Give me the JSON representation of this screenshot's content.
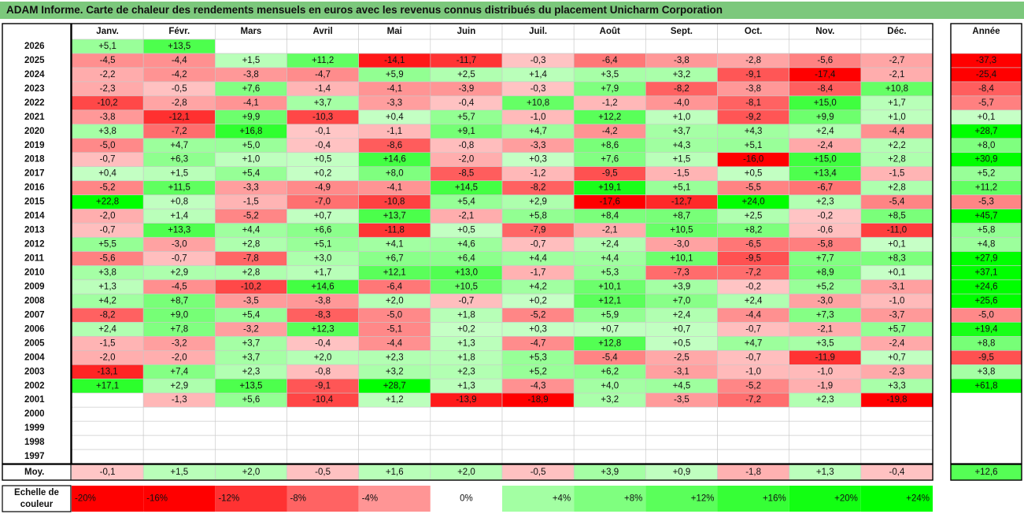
{
  "title": "ADAM Informe. Carte de chaleur des rendements mensuels en euros avec les revenus connus distribués du placement Unicharm Corporation",
  "chart_data": {
    "type": "heatmap",
    "months": [
      "Janv.",
      "Févr.",
      "Mars",
      "Avril",
      "Mai",
      "Juin",
      "Juil.",
      "Août",
      "Sept.",
      "Oct.",
      "Nov.",
      "Déc."
    ],
    "year_header": "Année",
    "rows": [
      {
        "year": "2026",
        "values": [
          5.1,
          13.5,
          null,
          null,
          null,
          null,
          null,
          null,
          null,
          null,
          null,
          null
        ],
        "annual": null
      },
      {
        "year": "2025",
        "values": [
          -4.5,
          -4.4,
          1.5,
          11.2,
          -14.1,
          -11.7,
          -0.3,
          -6.4,
          -3.8,
          -2.8,
          -5.6,
          -2.7
        ],
        "annual": -37.3
      },
      {
        "year": "2024",
        "values": [
          -2.2,
          -4.2,
          -3.8,
          -4.7,
          5.9,
          2.5,
          1.4,
          3.5,
          3.2,
          -9.1,
          -17.4,
          -2.1
        ],
        "annual": -25.4
      },
      {
        "year": "2023",
        "values": [
          -2.3,
          -0.5,
          7.6,
          -1.4,
          -4.1,
          -3.9,
          -0.3,
          7.9,
          -8.2,
          -3.8,
          -8.4,
          10.8
        ],
        "annual": -8.4
      },
      {
        "year": "2022",
        "values": [
          -10.2,
          -2.8,
          -4.1,
          3.7,
          -3.3,
          -0.4,
          10.8,
          -1.2,
          -4.0,
          -8.1,
          15.0,
          1.7
        ],
        "annual": -5.7
      },
      {
        "year": "2021",
        "values": [
          -3.8,
          -12.1,
          9.9,
          -10.3,
          0.4,
          5.7,
          -1.0,
          12.2,
          1.0,
          -9.2,
          9.9,
          1.0
        ],
        "annual": 0.1
      },
      {
        "year": "2020",
        "values": [
          3.8,
          -7.2,
          16.8,
          -0.1,
          -1.1,
          9.1,
          4.7,
          -4.2,
          3.7,
          4.3,
          2.4,
          -4.4
        ],
        "annual": 28.7
      },
      {
        "year": "2019",
        "values": [
          -5.0,
          4.7,
          5.0,
          -0.4,
          -8.6,
          -0.8,
          -3.3,
          8.6,
          4.3,
          5.1,
          -2.4,
          2.2
        ],
        "annual": 8.0
      },
      {
        "year": "2018",
        "values": [
          -0.7,
          6.3,
          1.0,
          0.5,
          14.6,
          -2.0,
          0.3,
          7.6,
          1.5,
          -16.0,
          15.0,
          2.8
        ],
        "annual": 30.9
      },
      {
        "year": "2017",
        "values": [
          0.4,
          1.5,
          5.4,
          0.2,
          8.0,
          -8.5,
          -1.2,
          -9.5,
          -1.5,
          0.5,
          13.4,
          -1.5
        ],
        "annual": 5.2
      },
      {
        "year": "2016",
        "values": [
          -5.2,
          11.5,
          -3.3,
          -4.9,
          -4.1,
          14.5,
          -8.2,
          19.1,
          5.1,
          -5.5,
          -6.7,
          2.8
        ],
        "annual": 11.2
      },
      {
        "year": "2015",
        "values": [
          22.8,
          0.8,
          -1.5,
          -7.0,
          -10.8,
          5.4,
          2.9,
          -17.6,
          -12.7,
          24.0,
          2.3,
          -5.4
        ],
        "annual": -5.3
      },
      {
        "year": "2014",
        "values": [
          -2.0,
          1.4,
          -5.2,
          0.7,
          13.7,
          -2.1,
          5.8,
          8.4,
          8.7,
          2.5,
          -0.2,
          8.5
        ],
        "annual": 45.7
      },
      {
        "year": "2013",
        "values": [
          -0.7,
          13.3,
          4.4,
          6.6,
          -11.8,
          0.5,
          -7.9,
          -2.1,
          10.5,
          8.2,
          -0.6,
          -11.0
        ],
        "annual": 5.8
      },
      {
        "year": "2012",
        "values": [
          5.5,
          -3.0,
          2.8,
          5.1,
          4.1,
          4.6,
          -0.7,
          2.4,
          -3.0,
          -6.5,
          -5.8,
          0.1
        ],
        "annual": 4.8
      },
      {
        "year": "2011",
        "values": [
          -5.6,
          -0.7,
          -7.8,
          3.0,
          6.7,
          6.4,
          4.4,
          4.4,
          10.1,
          -9.5,
          7.7,
          8.3
        ],
        "annual": 27.9
      },
      {
        "year": "2010",
        "values": [
          3.8,
          2.9,
          2.8,
          1.7,
          12.1,
          13.0,
          -1.7,
          5.3,
          -7.3,
          -7.2,
          8.9,
          0.1
        ],
        "annual": 37.1
      },
      {
        "year": "2009",
        "values": [
          1.3,
          -4.5,
          -10.2,
          14.6,
          -6.4,
          10.5,
          4.2,
          10.1,
          3.9,
          -0.2,
          5.2,
          -3.1
        ],
        "annual": 24.6
      },
      {
        "year": "2008",
        "values": [
          4.2,
          8.7,
          -3.5,
          -3.8,
          2.0,
          -0.7,
          0.2,
          12.1,
          7.0,
          2.4,
          -3.0,
          -1.0
        ],
        "annual": 25.6
      },
      {
        "year": "2007",
        "values": [
          -8.2,
          9.0,
          5.4,
          -8.3,
          -5.0,
          1.8,
          -5.2,
          5.9,
          2.4,
          -4.4,
          7.3,
          -3.7
        ],
        "annual": -5.0
      },
      {
        "year": "2006",
        "values": [
          2.4,
          7.8,
          -3.2,
          12.3,
          -5.1,
          0.2,
          0.3,
          0.7,
          0.7,
          -0.7,
          -2.1,
          5.7
        ],
        "annual": 19.4
      },
      {
        "year": "2005",
        "values": [
          -1.5,
          -3.2,
          3.7,
          -0.4,
          -4.4,
          1.3,
          -4.7,
          12.8,
          0.5,
          4.7,
          3.5,
          -2.4
        ],
        "annual": 8.8
      },
      {
        "year": "2004",
        "values": [
          -2.0,
          -2.0,
          3.7,
          2.0,
          2.3,
          1.8,
          5.3,
          -5.4,
          -2.5,
          -0.7,
          -11.9,
          0.7
        ],
        "annual": -9.5
      },
      {
        "year": "2003",
        "values": [
          -13.1,
          7.4,
          2.3,
          -0.8,
          3.2,
          2.3,
          5.2,
          6.2,
          -3.1,
          -1.0,
          -1.0,
          -2.3
        ],
        "annual": 3.8
      },
      {
        "year": "2002",
        "values": [
          17.1,
          2.9,
          13.5,
          -9.1,
          28.7,
          1.3,
          -4.3,
          4.0,
          4.5,
          -5.2,
          -1.9,
          3.3
        ],
        "annual": 61.8
      },
      {
        "year": "2001",
        "values": [
          null,
          -1.3,
          5.6,
          -10.4,
          1.2,
          -13.9,
          -18.9,
          3.2,
          -3.5,
          -7.2,
          2.3,
          -19.8
        ],
        "annual": null
      },
      {
        "year": "2000",
        "values": [
          null,
          null,
          null,
          null,
          null,
          null,
          null,
          null,
          null,
          null,
          null,
          null
        ],
        "annual": null
      },
      {
        "year": "1999",
        "values": [
          null,
          null,
          null,
          null,
          null,
          null,
          null,
          null,
          null,
          null,
          null,
          null
        ],
        "annual": null
      },
      {
        "year": "1998",
        "values": [
          null,
          null,
          null,
          null,
          null,
          null,
          null,
          null,
          null,
          null,
          null,
          null
        ],
        "annual": null
      },
      {
        "year": "1997",
        "values": [
          null,
          null,
          null,
          null,
          null,
          null,
          null,
          null,
          null,
          null,
          null,
          null
        ],
        "annual": null
      }
    ],
    "average": {
      "label": "Moy.",
      "values": [
        -0.1,
        1.5,
        2.0,
        -0.5,
        1.6,
        2.0,
        -0.5,
        3.9,
        0.9,
        -1.8,
        1.3,
        -0.4
      ],
      "annual": 12.6
    },
    "scale": {
      "label_line1": "Echelle de",
      "label_line2": "couleur",
      "steps": [
        {
          "label": "-20%",
          "value": -20
        },
        {
          "label": "-16%",
          "value": -16
        },
        {
          "label": "-12%",
          "value": -12
        },
        {
          "label": "-8%",
          "value": -8
        },
        {
          "label": "-4%",
          "value": -4
        },
        {
          "label": "0%",
          "value": 0
        },
        {
          "label": "+4%",
          "value": 4
        },
        {
          "label": "+8%",
          "value": 8
        },
        {
          "label": "+12%",
          "value": 12
        },
        {
          "label": "+16%",
          "value": 16
        },
        {
          "label": "+20%",
          "value": 20
        },
        {
          "label": "+24%",
          "value": 24
        }
      ]
    },
    "colors": {
      "negative_max": "#ff0000",
      "positive_max": "#00ff00",
      "neutral": "#ffffff",
      "title_bg": "#7cc87c"
    }
  }
}
